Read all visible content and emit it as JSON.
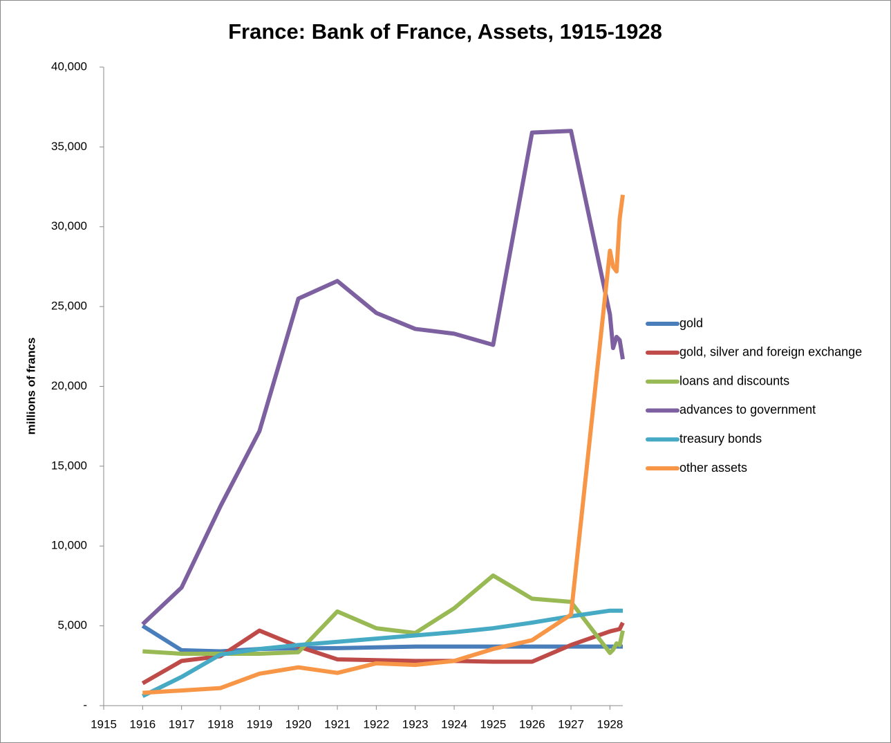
{
  "chart_data": {
    "type": "line",
    "title": "France: Bank of France, Assets, 1915-1928",
    "y_label": "millions of francs",
    "x": [
      1916,
      1917,
      1918,
      1919,
      1920,
      1921,
      1922,
      1923,
      1924,
      1925,
      1926,
      1927,
      1928,
      1928.08,
      1928.17,
      1928.25,
      1928.33
    ],
    "xlim": [
      1915,
      1928.33
    ],
    "xticks": [
      1915,
      1916,
      1917,
      1918,
      1919,
      1920,
      1921,
      1922,
      1923,
      1924,
      1925,
      1926,
      1927,
      1928
    ],
    "ylim": [
      0,
      40000
    ],
    "yticks": [
      {
        "value": 0,
        "label": "-"
      },
      {
        "value": 5000,
        "label": "5,000"
      },
      {
        "value": 10000,
        "label": "10,000"
      },
      {
        "value": 15000,
        "label": "15,000"
      },
      {
        "value": 20000,
        "label": "20,000"
      },
      {
        "value": 25000,
        "label": "25,000"
      },
      {
        "value": 30000,
        "label": "30,000"
      },
      {
        "value": 35000,
        "label": "35,000"
      },
      {
        "value": 40000,
        "label": "40,000"
      }
    ],
    "grid": false,
    "legend": "right",
    "series": [
      {
        "name": "gold",
        "color": "#4a7ebb",
        "values": [
          5000,
          3470,
          3400,
          3550,
          3600,
          3600,
          3650,
          3700,
          3700,
          3700,
          3700,
          3700,
          3700,
          3700,
          3700,
          3700,
          3700
        ]
      },
      {
        "name": "gold, silver and foreign exchange",
        "color": "#be4b48",
        "values": [
          1400,
          2800,
          3100,
          4700,
          3700,
          2900,
          2850,
          2800,
          2800,
          2750,
          2750,
          3800,
          4650,
          4700,
          4750,
          4800,
          5200
        ]
      },
      {
        "name": "loans and discounts",
        "color": "#98b954",
        "values": [
          3400,
          3250,
          3250,
          3250,
          3350,
          5900,
          4850,
          4550,
          6100,
          8150,
          6700,
          6500,
          3300,
          3500,
          3900,
          3800,
          4700
        ]
      },
      {
        "name": "advances to government",
        "color": "#7d60a0",
        "values": [
          5100,
          7400,
          12500,
          17200,
          25500,
          26600,
          24600,
          23600,
          23300,
          22600,
          35900,
          36000,
          24500,
          22400,
          23100,
          22900,
          21700
        ]
      },
      {
        "name": "treasury bonds",
        "color": "#46aac5",
        "values": [
          600,
          1800,
          3200,
          3550,
          3800,
          4000,
          4200,
          4400,
          4600,
          4850,
          5200,
          5600,
          5950,
          5950,
          5950,
          5950,
          5950
        ]
      },
      {
        "name": "other assets",
        "color": "#f79646",
        "values": [
          800,
          950,
          1100,
          2000,
          2400,
          2050,
          2650,
          2550,
          2800,
          3550,
          4100,
          5700,
          28500,
          27500,
          27200,
          30500,
          32000
        ]
      }
    ]
  }
}
